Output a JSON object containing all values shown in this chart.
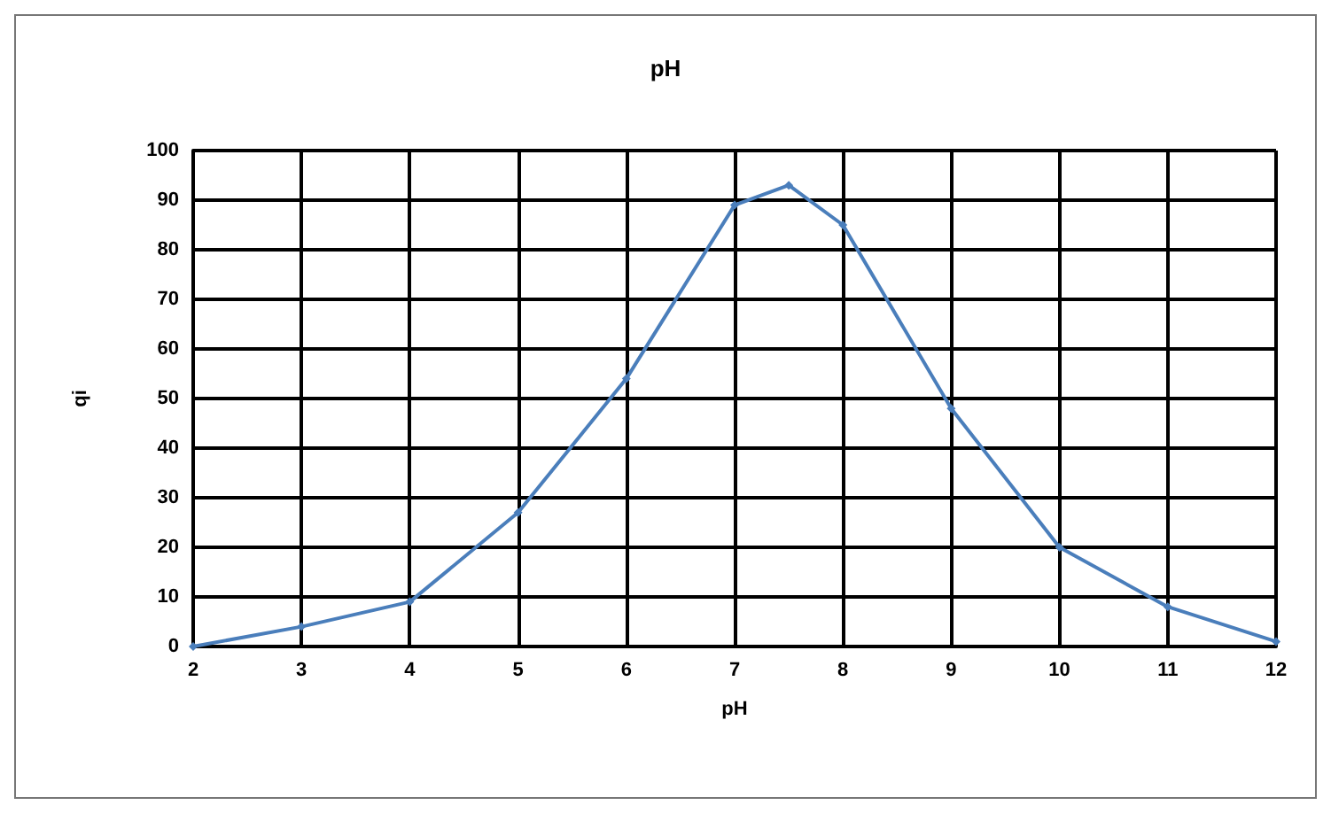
{
  "chart_data": {
    "type": "line",
    "title": "pH",
    "xlabel": "pH",
    "ylabel": "qi",
    "x": [
      2,
      3,
      4,
      5,
      6,
      7,
      7.5,
      8,
      9,
      10,
      11,
      12
    ],
    "series": [
      {
        "color": "#4a7ebb",
        "values": [
          0,
          4,
          9,
          27,
          54,
          89,
          93,
          85,
          48,
          20,
          8,
          1
        ]
      }
    ],
    "xlim": [
      2,
      12
    ],
    "xticks": [
      2,
      3,
      4,
      5,
      6,
      7,
      8,
      9,
      10,
      11,
      12
    ],
    "ylim": [
      0,
      100
    ],
    "yticks": [
      0,
      10,
      20,
      30,
      40,
      50,
      60,
      70,
      80,
      90,
      100
    ],
    "grid": true,
    "marker": "diamond",
    "line_style": "solid"
  }
}
